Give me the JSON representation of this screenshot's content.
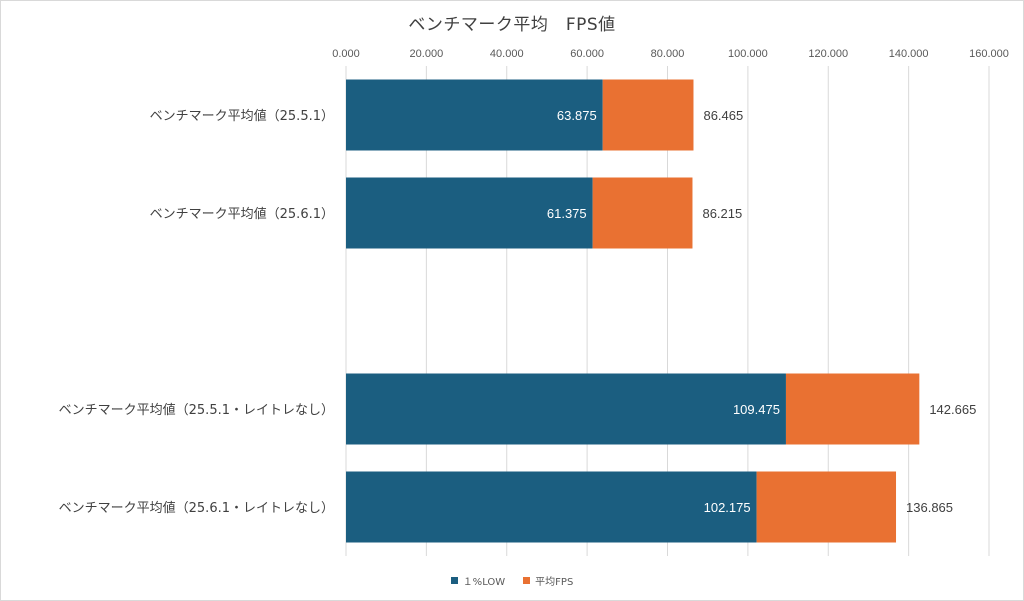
{
  "chart_data": {
    "type": "bar",
    "orientation": "horizontal",
    "stacked": true,
    "title": "ベンチマーク平均　FPS値",
    "categories": [
      "ベンチマーク平均値（25.5.1）",
      "ベンチマーク平均値（25.6.1）",
      "",
      "ベンチマーク平均値（25.5.1・レイトレなし）",
      "ベンチマーク平均値（25.6.1・レイトレなし）"
    ],
    "series": [
      {
        "name": "１%LOW",
        "color": "#1b5e80",
        "values": [
          63.875,
          61.375,
          null,
          109.475,
          102.175
        ],
        "labels": [
          "63.875",
          "61.375",
          "",
          "109.475",
          "102.175"
        ]
      },
      {
        "name": "平均FPS",
        "color": "#e97132",
        "values": [
          22.59,
          24.84,
          null,
          33.19,
          34.69
        ],
        "labels": [
          "86.465",
          "86.215",
          "",
          "142.665",
          "136.865"
        ]
      }
    ],
    "xlim": [
      0,
      160
    ],
    "xticks": [
      "0.000",
      "20.000",
      "40.000",
      "60.000",
      "80.000",
      "100.000",
      "120.000",
      "140.000",
      "160.000"
    ],
    "grid": true,
    "axis_position": "top",
    "legend": "bottom"
  }
}
